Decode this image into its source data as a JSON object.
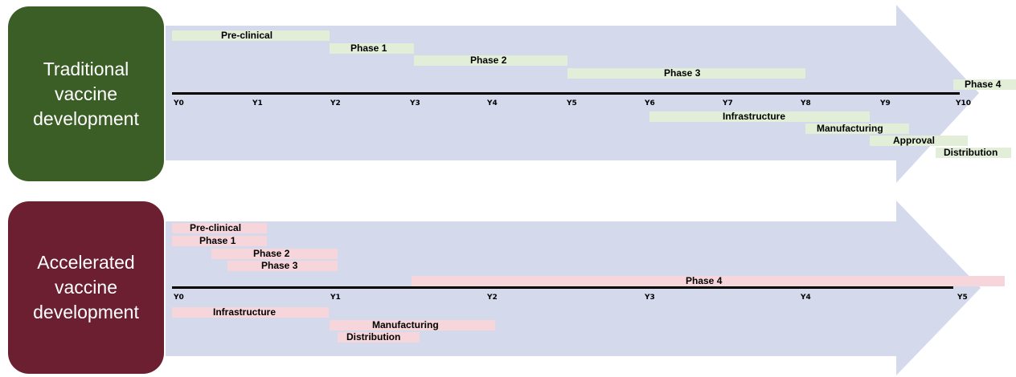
{
  "colors": {
    "traditional_box": "#3b5e26",
    "accelerated_box": "#6b1f31",
    "arrow_fill": "#d5d9ec",
    "traditional_bar": "#e2eed8",
    "accelerated_bar": "#f6d6db"
  },
  "traditional": {
    "title": "Traditional\nvaccine\ndevelopment",
    "ticks": [
      "Y0",
      "Y1",
      "Y2",
      "Y3",
      "Y4",
      "Y5",
      "Y6",
      "Y7",
      "Y8",
      "Y9",
      "Y10"
    ],
    "bars": [
      {
        "label": "Pre-clinical"
      },
      {
        "label": "Phase 1"
      },
      {
        "label": "Phase 2"
      },
      {
        "label": "Phase 3"
      },
      {
        "label": "Phase 4"
      },
      {
        "label": "Infrastructure"
      },
      {
        "label": "Manufacturing"
      },
      {
        "label": "Approval"
      },
      {
        "label": "Distribution"
      }
    ]
  },
  "accelerated": {
    "title": "Accelerated\nvaccine\ndevelopment",
    "ticks": [
      "Y0",
      "Y1",
      "Y2",
      "Y3",
      "Y4",
      "Y5"
    ],
    "bars": [
      {
        "label": "Pre-clinical"
      },
      {
        "label": "Phase 1"
      },
      {
        "label": "Phase 2"
      },
      {
        "label": "Phase 3"
      },
      {
        "label": "Phase 4"
      },
      {
        "label": "Infrastructure"
      },
      {
        "label": "Manufacturing"
      },
      {
        "label": "Distribution"
      }
    ]
  }
}
